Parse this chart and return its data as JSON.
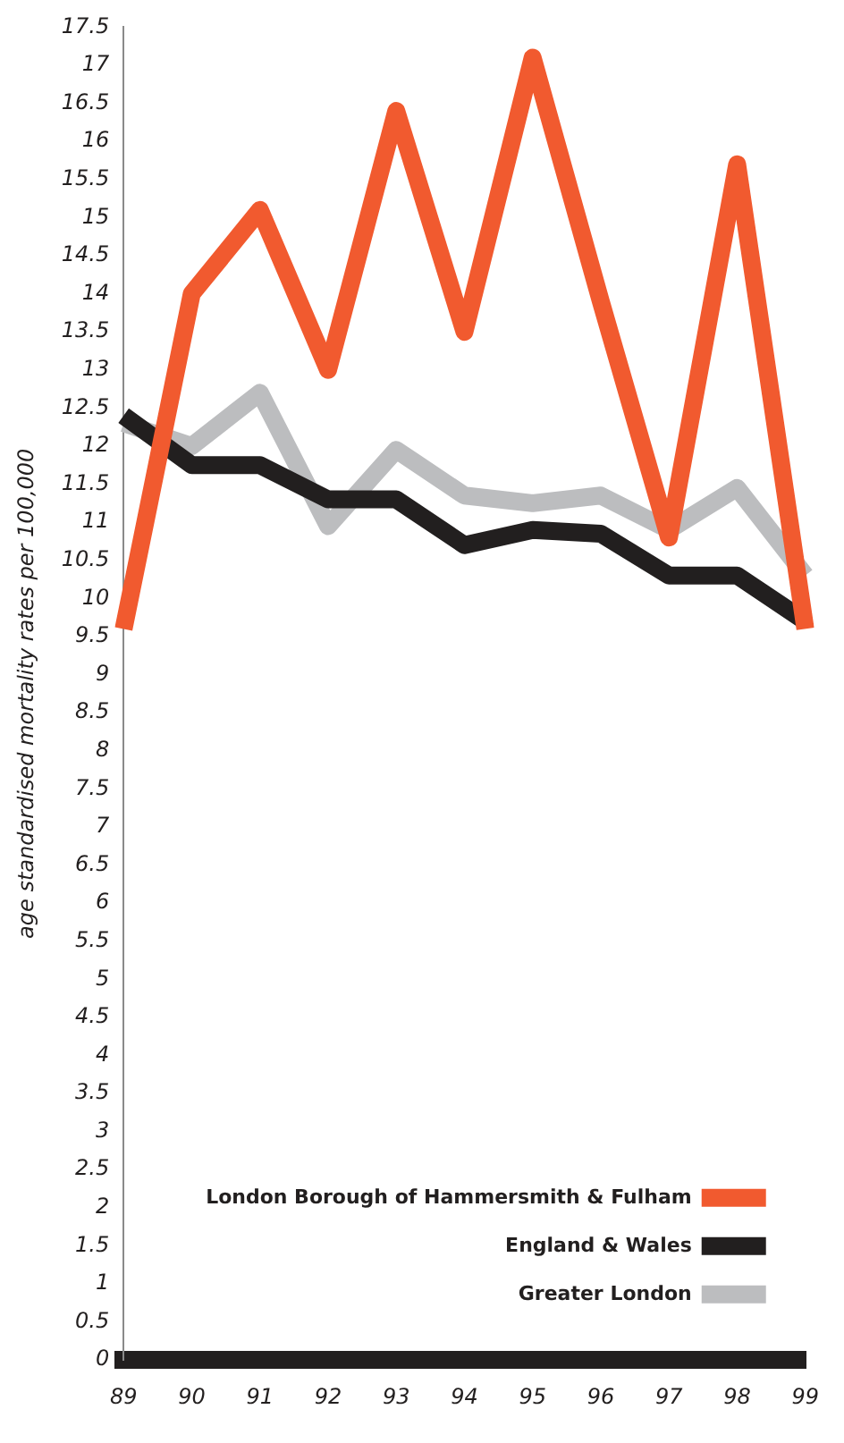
{
  "chart_data": {
    "type": "line",
    "ylabel": "age standardised mortality rates per 100,000",
    "categories": [
      "89",
      "90",
      "91",
      "92",
      "93",
      "94",
      "95",
      "96",
      "97",
      "98",
      "99"
    ],
    "series": [
      {
        "name": "London Borough of Hammersmith & Fulham",
        "color": "#f15a2f",
        "values": [
          9.6,
          14.0,
          15.1,
          13.0,
          16.4,
          13.5,
          17.1,
          13.9,
          10.8,
          15.7,
          9.6
        ]
      },
      {
        "name": "England & Wales",
        "color": "#221f1f",
        "values": [
          12.4,
          11.75,
          11.75,
          11.3,
          11.3,
          10.7,
          10.9,
          10.85,
          10.3,
          10.3,
          9.7
        ]
      },
      {
        "name": "Greater London",
        "color": "#bcbdbf",
        "values": [
          12.3,
          12.0,
          12.7,
          10.95,
          11.95,
          11.35,
          11.25,
          11.35,
          10.9,
          11.45,
          10.3
        ]
      }
    ],
    "ylim": [
      0,
      17.5
    ],
    "yticks": [
      0,
      0.5,
      1,
      1.5,
      2,
      2.5,
      3,
      3.5,
      4,
      4.5,
      5,
      5.5,
      6,
      6.5,
      7,
      7.5,
      8,
      8.5,
      9,
      9.5,
      10,
      10.5,
      11,
      11.5,
      12,
      12.5,
      13,
      13.5,
      14,
      14.5,
      15,
      15.5,
      16,
      16.5,
      17,
      17.5
    ],
    "grid": false,
    "legend": "bottom right",
    "marker": "none",
    "line_style": "solid"
  }
}
